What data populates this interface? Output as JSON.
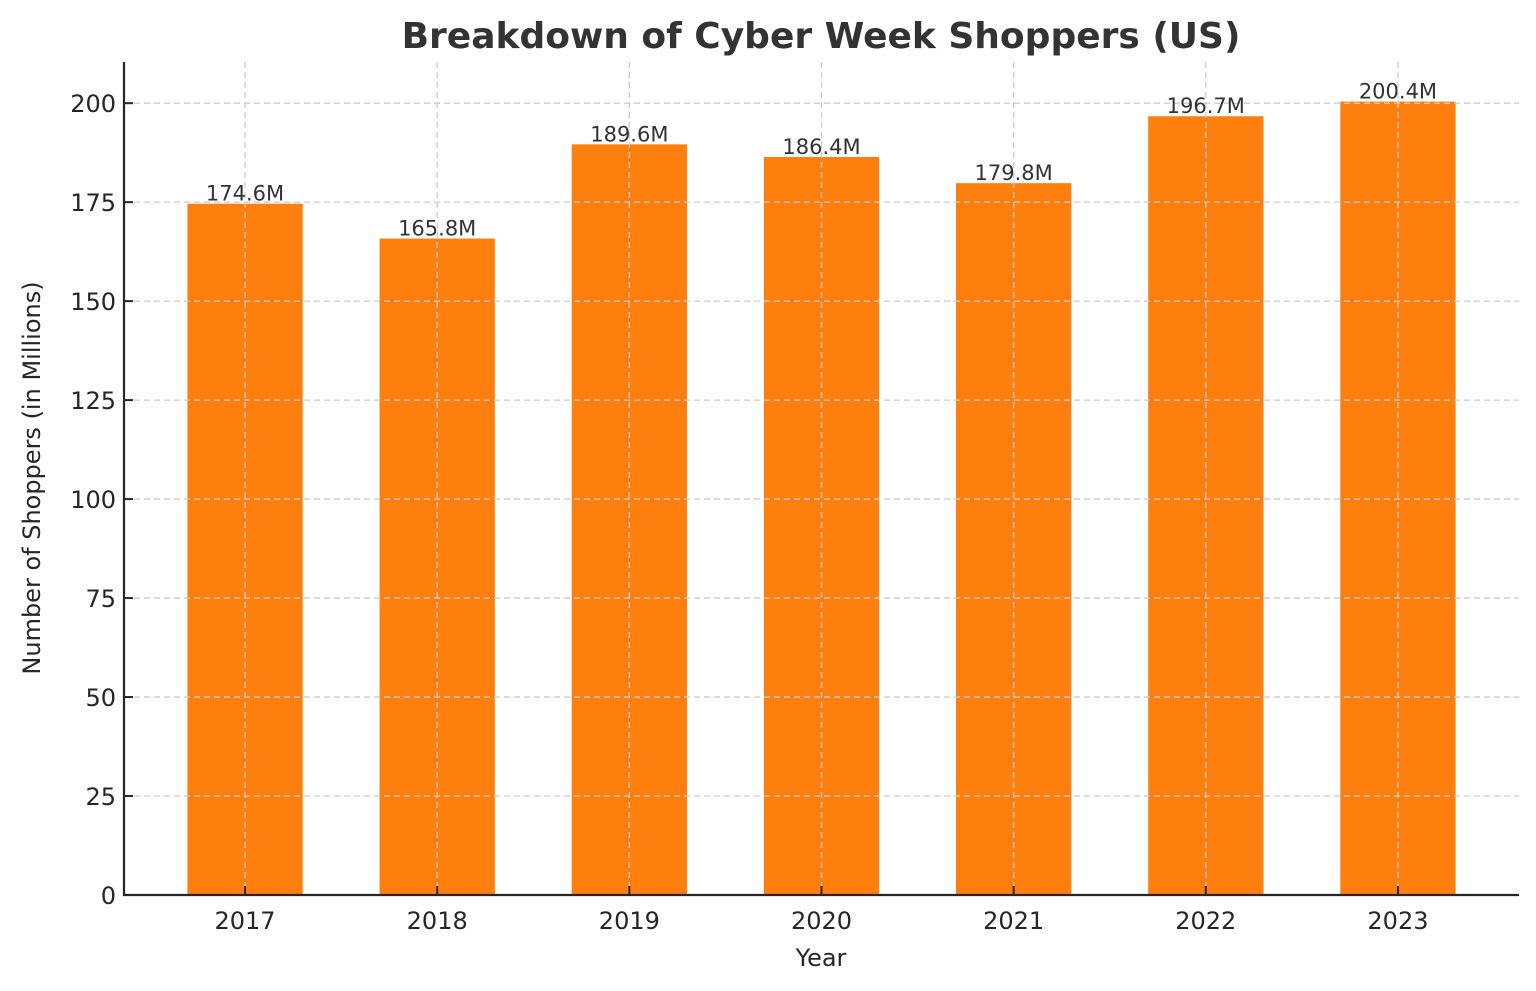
{
  "chart_data": {
    "type": "bar",
    "title": "Breakdown of Cyber Week Shoppers (US)",
    "xlabel": "Year",
    "ylabel": "Number of Shoppers (in Millions)",
    "categories": [
      "2017",
      "2018",
      "2019",
      "2020",
      "2021",
      "2022",
      "2023"
    ],
    "values": [
      174.6,
      165.8,
      189.6,
      186.4,
      179.8,
      196.7,
      200.4
    ],
    "bar_labels": [
      "174.6M",
      "165.8M",
      "189.6M",
      "186.4M",
      "179.8M",
      "196.7M",
      "200.4M"
    ],
    "yticks": [
      0,
      25,
      50,
      75,
      100,
      125,
      150,
      175,
      200
    ],
    "ylim": [
      0,
      210.4
    ],
    "grid": true,
    "grid_style": "dashed",
    "legend": null,
    "bar_color": "#ff7f0e"
  }
}
